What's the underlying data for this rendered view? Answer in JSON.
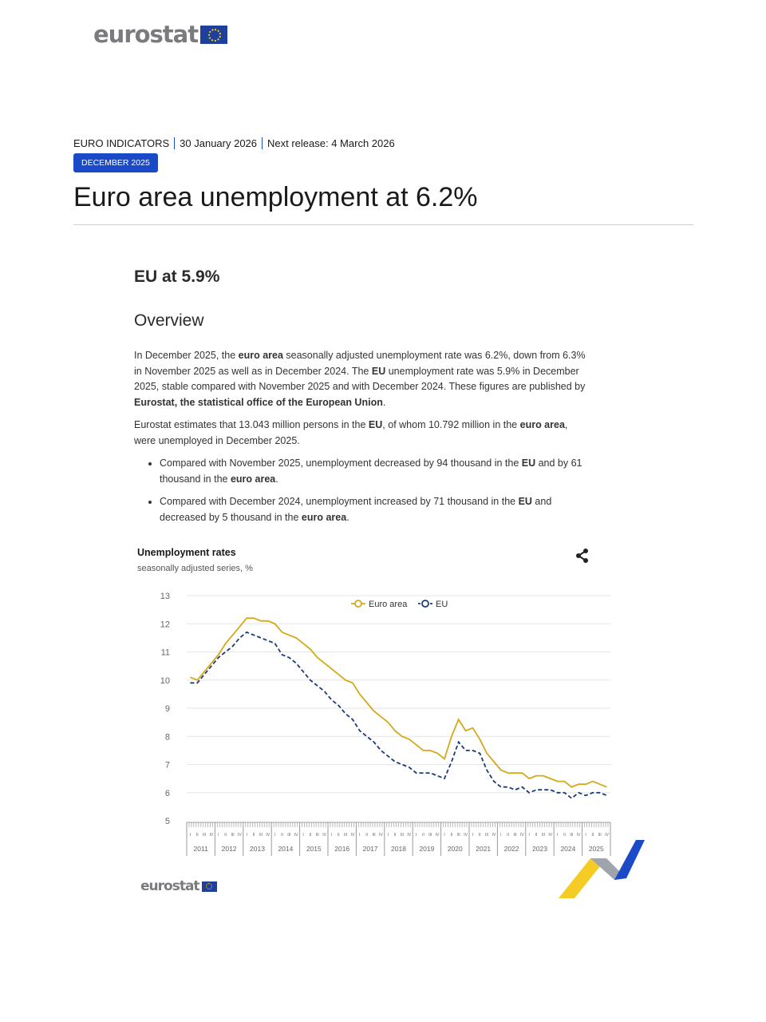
{
  "header": {
    "logo": "eurostat",
    "category": "EURO INDICATORS",
    "date": "30 January 2026",
    "next_release": "Next release: 4 March 2026",
    "badge": "DECEMBER 2025"
  },
  "title": "Euro area unemployment at 6.2%",
  "subtitle": "EU at 5.9%",
  "section": "Overview",
  "paragraphs": [
    [
      {
        "t": "In December 2025, the "
      },
      {
        "t": "euro area",
        "b": true
      },
      {
        "t": " seasonally adjusted unemployment rate was 6.2%, down from 6.3% in November 2025 as well as in December 2024. The "
      },
      {
        "t": "EU",
        "b": true
      },
      {
        "t": " unemployment rate was 5.9% in December 2025, stable compared with November 2025 and with December 2024. These figures are published by "
      },
      {
        "t": "Eurostat, the statistical office of the European Union",
        "b": true
      },
      {
        "t": "."
      }
    ],
    [
      {
        "t": "Eurostat estimates that 13.043 million persons in the "
      },
      {
        "t": "EU",
        "b": true
      },
      {
        "t": ", of whom 10.792 million in the "
      },
      {
        "t": "euro area",
        "b": true
      },
      {
        "t": ", were unemployed in December 2025."
      }
    ]
  ],
  "bullets": [
    [
      {
        "t": "Compared with November 2025, unemployment decreased by 94 thousand in the "
      },
      {
        "t": "EU",
        "b": true
      },
      {
        "t": " and by 61 thousand in the "
      },
      {
        "t": "euro area",
        "b": true
      },
      {
        "t": "."
      }
    ],
    [
      {
        "t": "Compared with December 2024, unemployment increased by 71 thousand in the "
      },
      {
        "t": "EU",
        "b": true
      },
      {
        "t": " and decreased by 5 thousand in the "
      },
      {
        "t": "euro area",
        "b": true
      },
      {
        "t": "."
      }
    ]
  ],
  "chart_data": {
    "type": "line",
    "title": "Unemployment rates",
    "subtitle": "seasonally adjusted series, %",
    "ylim": [
      5,
      13
    ],
    "yticks": [
      5,
      6,
      7,
      8,
      9,
      10,
      11,
      12,
      13
    ],
    "years": [
      "2011",
      "2012",
      "2013",
      "2014",
      "2015",
      "2016",
      "2017",
      "2018",
      "2019",
      "2020",
      "2021",
      "2022",
      "2023",
      "2024",
      "2025"
    ],
    "quarters": [
      "I",
      "II",
      "III",
      "IV"
    ],
    "legend_position": "top-center",
    "grid": true,
    "series": [
      {
        "name": "Euro area",
        "color": "#d4a919",
        "dash": false,
        "values": [
          10.1,
          10.0,
          10.3,
          10.6,
          10.9,
          11.3,
          11.6,
          11.9,
          12.2,
          12.2,
          12.1,
          12.1,
          12.0,
          11.7,
          11.6,
          11.5,
          11.3,
          11.1,
          10.8,
          10.6,
          10.4,
          10.2,
          10.0,
          9.9,
          9.5,
          9.2,
          8.9,
          8.7,
          8.5,
          8.2,
          8.0,
          7.9,
          7.7,
          7.5,
          7.5,
          7.4,
          7.2,
          8.0,
          8.6,
          8.2,
          8.3,
          7.9,
          7.4,
          7.1,
          6.8,
          6.7,
          6.7,
          6.7,
          6.5,
          6.6,
          6.6,
          6.5,
          6.4,
          6.4,
          6.2,
          6.3,
          6.3,
          6.4,
          6.3,
          6.2
        ]
      },
      {
        "name": "EU",
        "color": "#1d3a7a",
        "dash": true,
        "values": [
          9.9,
          9.9,
          10.2,
          10.5,
          10.8,
          11.0,
          11.2,
          11.5,
          11.7,
          11.6,
          11.5,
          11.4,
          11.3,
          10.9,
          10.8,
          10.6,
          10.3,
          10.0,
          9.8,
          9.6,
          9.3,
          9.1,
          8.8,
          8.6,
          8.2,
          8.0,
          7.8,
          7.5,
          7.3,
          7.1,
          7.0,
          6.9,
          6.7,
          6.7,
          6.7,
          6.6,
          6.5,
          7.1,
          7.8,
          7.5,
          7.5,
          7.4,
          6.8,
          6.4,
          6.2,
          6.2,
          6.1,
          6.2,
          6.0,
          6.1,
          6.1,
          6.1,
          6.0,
          6.0,
          5.8,
          6.0,
          5.9,
          6.0,
          6.0,
          5.9
        ]
      }
    ]
  },
  "footer_logo": "eurostat",
  "icons": {
    "share": "share-icon"
  }
}
